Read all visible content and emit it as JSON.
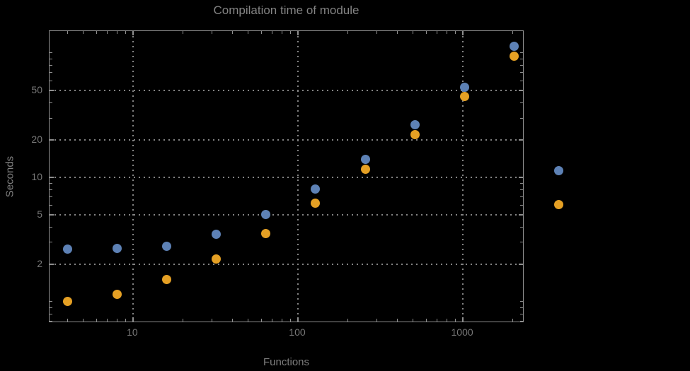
{
  "chart_data": {
    "type": "scatter",
    "title": "Compilation time of module",
    "xlabel": "Functions",
    "ylabel": "Seconds",
    "x_scale": "log",
    "y_scale": "log",
    "x_range": [
      3.12,
      2360
    ],
    "y_range": [
      0.675,
      150
    ],
    "grid": "dotted gridlines at major ticks",
    "legend_position": "right-outside",
    "legend_labels_visible": false,
    "x_ticks": [
      {
        "value": 10,
        "label": "10"
      },
      {
        "value": 100,
        "label": "100"
      },
      {
        "value": 1000,
        "label": "1000"
      }
    ],
    "y_ticks": [
      {
        "value": 2,
        "label": "2"
      },
      {
        "value": 5,
        "label": "5"
      },
      {
        "value": 10,
        "label": "10"
      },
      {
        "value": 20,
        "label": "20"
      },
      {
        "value": 50,
        "label": "50"
      }
    ],
    "x": [
      4,
      8,
      16,
      32,
      64,
      128,
      256,
      512,
      1024,
      2048
    ],
    "series": [
      {
        "name": "series-1-blue",
        "color": "#5d81b5",
        "values": [
          2.65,
          2.67,
          2.8,
          3.5,
          5.0,
          8.1,
          13.9,
          26.5,
          53,
          113
        ]
      },
      {
        "name": "series-2-orange",
        "color": "#e5a024",
        "values": [
          1.0,
          1.15,
          1.5,
          2.2,
          3.55,
          6.2,
          11.6,
          22,
          45,
          94
        ]
      }
    ]
  },
  "colors": {
    "background": "#000000",
    "frame": "#8f8f8f",
    "grid": "#848484",
    "title_text": "#848484",
    "tick_text": "#787878",
    "axis_label_text": "#7e7e7e"
  }
}
